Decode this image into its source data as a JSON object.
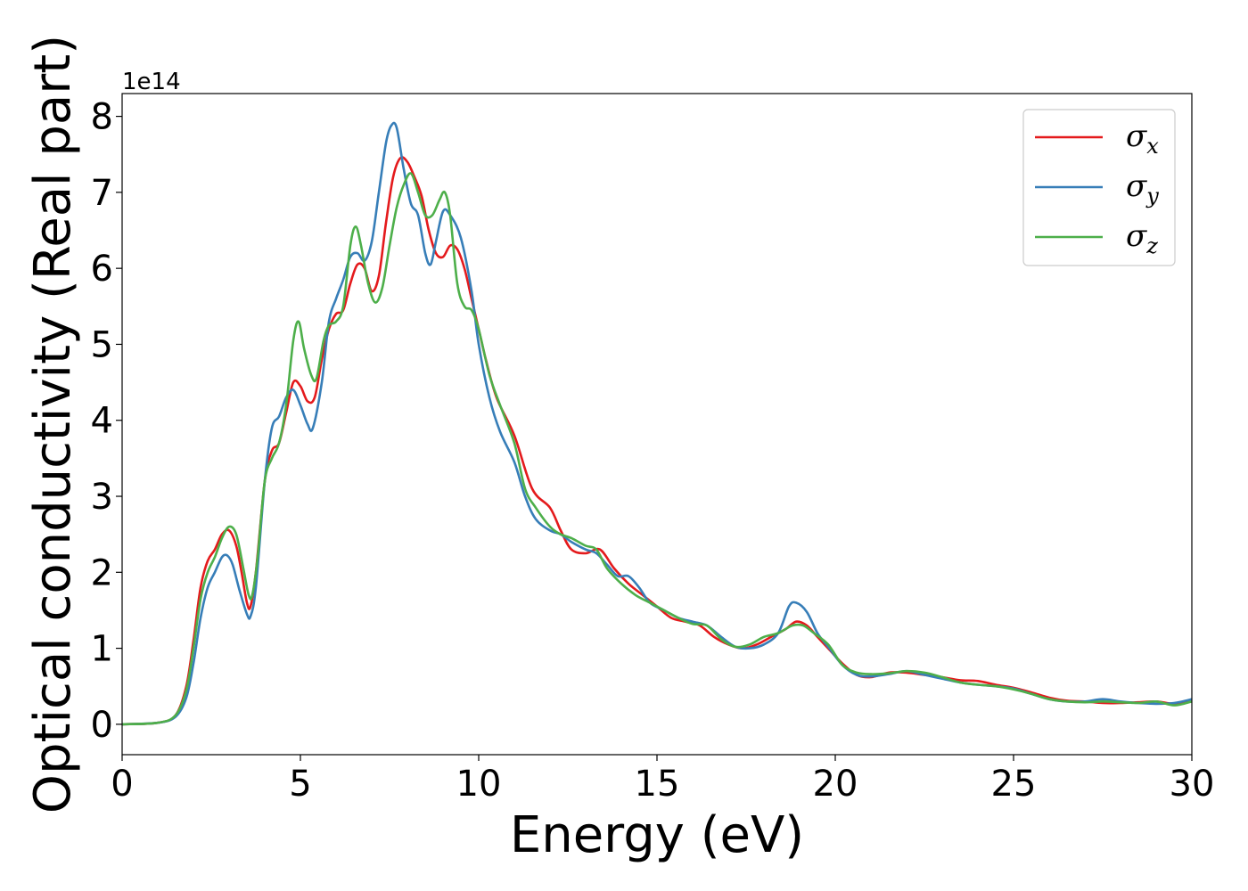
{
  "chart_data": {
    "type": "line",
    "xlabel": "Energy (eV)",
    "ylabel": "Optical conductivity (Real part)",
    "offset_label": "1e14",
    "xlim": [
      0,
      30
    ],
    "ylim": [
      -0.4,
      8.3
    ],
    "x_ticks": [
      0,
      5,
      10,
      15,
      20,
      25,
      30
    ],
    "y_ticks": [
      0,
      1,
      2,
      3,
      4,
      5,
      6,
      7,
      8
    ],
    "grid": false,
    "legend_position": "top-right",
    "series": [
      {
        "symbol": "σ",
        "subscript": "x",
        "color": "#e41a1c",
        "points": [
          [
            0,
            0
          ],
          [
            1,
            0.02
          ],
          [
            1.5,
            0.12
          ],
          [
            1.8,
            0.5
          ],
          [
            2.0,
            1.1
          ],
          [
            2.2,
            1.8
          ],
          [
            2.4,
            2.15
          ],
          [
            2.6,
            2.3
          ],
          [
            2.8,
            2.5
          ],
          [
            3.0,
            2.55
          ],
          [
            3.2,
            2.35
          ],
          [
            3.35,
            2.0
          ],
          [
            3.5,
            1.6
          ],
          [
            3.6,
            1.55
          ],
          [
            3.75,
            2.0
          ],
          [
            4.0,
            3.2
          ],
          [
            4.2,
            3.6
          ],
          [
            4.4,
            3.7
          ],
          [
            4.6,
            4.1
          ],
          [
            4.8,
            4.5
          ],
          [
            5.0,
            4.45
          ],
          [
            5.2,
            4.25
          ],
          [
            5.4,
            4.3
          ],
          [
            5.6,
            4.8
          ],
          [
            5.8,
            5.2
          ],
          [
            6.0,
            5.4
          ],
          [
            6.2,
            5.45
          ],
          [
            6.4,
            5.8
          ],
          [
            6.6,
            6.05
          ],
          [
            6.8,
            6.0
          ],
          [
            7.0,
            5.7
          ],
          [
            7.2,
            5.9
          ],
          [
            7.4,
            6.6
          ],
          [
            7.6,
            7.2
          ],
          [
            7.8,
            7.45
          ],
          [
            8.0,
            7.4
          ],
          [
            8.2,
            7.2
          ],
          [
            8.4,
            6.95
          ],
          [
            8.6,
            6.5
          ],
          [
            8.8,
            6.2
          ],
          [
            9.0,
            6.15
          ],
          [
            9.2,
            6.3
          ],
          [
            9.4,
            6.25
          ],
          [
            9.6,
            6.0
          ],
          [
            9.8,
            5.6
          ],
          [
            10.0,
            5.2
          ],
          [
            10.2,
            4.8
          ],
          [
            10.5,
            4.3
          ],
          [
            11.0,
            3.8
          ],
          [
            11.5,
            3.1
          ],
          [
            12.0,
            2.85
          ],
          [
            12.3,
            2.55
          ],
          [
            12.6,
            2.3
          ],
          [
            13.0,
            2.25
          ],
          [
            13.4,
            2.3
          ],
          [
            13.8,
            2.05
          ],
          [
            14.2,
            1.85
          ],
          [
            14.6,
            1.7
          ],
          [
            15.0,
            1.55
          ],
          [
            15.4,
            1.4
          ],
          [
            15.8,
            1.35
          ],
          [
            16.2,
            1.3
          ],
          [
            16.6,
            1.15
          ],
          [
            17.0,
            1.05
          ],
          [
            17.4,
            1.0
          ],
          [
            17.8,
            1.05
          ],
          [
            18.2,
            1.15
          ],
          [
            18.6,
            1.25
          ],
          [
            18.9,
            1.35
          ],
          [
            19.2,
            1.3
          ],
          [
            19.5,
            1.15
          ],
          [
            19.8,
            1.0
          ],
          [
            20.2,
            0.8
          ],
          [
            20.6,
            0.65
          ],
          [
            21.0,
            0.62
          ],
          [
            21.5,
            0.68
          ],
          [
            22.0,
            0.68
          ],
          [
            22.5,
            0.65
          ],
          [
            23.0,
            0.62
          ],
          [
            23.5,
            0.58
          ],
          [
            24.0,
            0.57
          ],
          [
            24.5,
            0.52
          ],
          [
            25.0,
            0.48
          ],
          [
            25.5,
            0.42
          ],
          [
            26.0,
            0.35
          ],
          [
            26.5,
            0.31
          ],
          [
            27.0,
            0.3
          ],
          [
            27.5,
            0.28
          ],
          [
            28.0,
            0.28
          ],
          [
            28.5,
            0.29
          ],
          [
            29.0,
            0.3
          ],
          [
            29.5,
            0.27
          ],
          [
            30.0,
            0.3
          ]
        ]
      },
      {
        "symbol": "σ",
        "subscript": "y",
        "color": "#377eb8",
        "points": [
          [
            0,
            0
          ],
          [
            1,
            0.02
          ],
          [
            1.5,
            0.1
          ],
          [
            1.8,
            0.35
          ],
          [
            2.0,
            0.8
          ],
          [
            2.2,
            1.4
          ],
          [
            2.4,
            1.8
          ],
          [
            2.6,
            2.0
          ],
          [
            2.8,
            2.2
          ],
          [
            2.95,
            2.22
          ],
          [
            3.1,
            2.1
          ],
          [
            3.3,
            1.75
          ],
          [
            3.5,
            1.45
          ],
          [
            3.6,
            1.42
          ],
          [
            3.75,
            1.8
          ],
          [
            4.0,
            3.2
          ],
          [
            4.2,
            3.9
          ],
          [
            4.4,
            4.05
          ],
          [
            4.6,
            4.3
          ],
          [
            4.8,
            4.4
          ],
          [
            5.0,
            4.2
          ],
          [
            5.2,
            3.95
          ],
          [
            5.35,
            3.9
          ],
          [
            5.6,
            4.5
          ],
          [
            5.8,
            5.3
          ],
          [
            6.0,
            5.6
          ],
          [
            6.2,
            5.85
          ],
          [
            6.4,
            6.15
          ],
          [
            6.6,
            6.2
          ],
          [
            6.8,
            6.1
          ],
          [
            7.0,
            6.35
          ],
          [
            7.2,
            7.0
          ],
          [
            7.4,
            7.65
          ],
          [
            7.55,
            7.88
          ],
          [
            7.7,
            7.85
          ],
          [
            7.9,
            7.3
          ],
          [
            8.1,
            6.85
          ],
          [
            8.3,
            6.7
          ],
          [
            8.5,
            6.2
          ],
          [
            8.65,
            6.05
          ],
          [
            8.8,
            6.35
          ],
          [
            9.0,
            6.75
          ],
          [
            9.2,
            6.7
          ],
          [
            9.5,
            6.4
          ],
          [
            9.8,
            5.7
          ],
          [
            10.0,
            5.0
          ],
          [
            10.3,
            4.3
          ],
          [
            10.6,
            3.85
          ],
          [
            11.0,
            3.45
          ],
          [
            11.3,
            3.0
          ],
          [
            11.6,
            2.7
          ],
          [
            12.0,
            2.55
          ],
          [
            12.3,
            2.5
          ],
          [
            12.6,
            2.4
          ],
          [
            13.0,
            2.3
          ],
          [
            13.3,
            2.25
          ],
          [
            13.6,
            2.1
          ],
          [
            13.9,
            1.95
          ],
          [
            14.2,
            1.95
          ],
          [
            14.5,
            1.8
          ],
          [
            14.8,
            1.6
          ],
          [
            15.2,
            1.5
          ],
          [
            15.6,
            1.4
          ],
          [
            16.0,
            1.35
          ],
          [
            16.4,
            1.3
          ],
          [
            16.8,
            1.15
          ],
          [
            17.2,
            1.02
          ],
          [
            17.6,
            1.0
          ],
          [
            18.0,
            1.05
          ],
          [
            18.4,
            1.2
          ],
          [
            18.7,
            1.55
          ],
          [
            18.9,
            1.6
          ],
          [
            19.2,
            1.48
          ],
          [
            19.5,
            1.2
          ],
          [
            19.8,
            1.02
          ],
          [
            20.2,
            0.78
          ],
          [
            20.6,
            0.65
          ],
          [
            21.0,
            0.63
          ],
          [
            21.5,
            0.66
          ],
          [
            22.0,
            0.7
          ],
          [
            22.5,
            0.65
          ],
          [
            23.0,
            0.6
          ],
          [
            23.5,
            0.55
          ],
          [
            24.0,
            0.52
          ],
          [
            24.5,
            0.5
          ],
          [
            25.0,
            0.47
          ],
          [
            25.5,
            0.4
          ],
          [
            26.0,
            0.33
          ],
          [
            26.5,
            0.3
          ],
          [
            27.0,
            0.3
          ],
          [
            27.5,
            0.33
          ],
          [
            28.0,
            0.3
          ],
          [
            28.5,
            0.28
          ],
          [
            29.0,
            0.27
          ],
          [
            29.5,
            0.28
          ],
          [
            30.0,
            0.33
          ]
        ]
      },
      {
        "symbol": "σ",
        "subscript": "z",
        "color": "#4daf4a",
        "points": [
          [
            0,
            0
          ],
          [
            1,
            0.02
          ],
          [
            1.5,
            0.12
          ],
          [
            1.8,
            0.45
          ],
          [
            2.0,
            1.0
          ],
          [
            2.2,
            1.65
          ],
          [
            2.4,
            2.0
          ],
          [
            2.6,
            2.2
          ],
          [
            2.8,
            2.45
          ],
          [
            3.0,
            2.6
          ],
          [
            3.2,
            2.5
          ],
          [
            3.4,
            2.05
          ],
          [
            3.55,
            1.7
          ],
          [
            3.65,
            1.7
          ],
          [
            3.8,
            2.2
          ],
          [
            4.0,
            3.2
          ],
          [
            4.2,
            3.5
          ],
          [
            4.4,
            3.7
          ],
          [
            4.6,
            4.2
          ],
          [
            4.8,
            5.05
          ],
          [
            4.95,
            5.3
          ],
          [
            5.1,
            4.95
          ],
          [
            5.3,
            4.6
          ],
          [
            5.45,
            4.55
          ],
          [
            5.65,
            5.05
          ],
          [
            5.8,
            5.25
          ],
          [
            6.0,
            5.3
          ],
          [
            6.2,
            5.5
          ],
          [
            6.4,
            6.3
          ],
          [
            6.55,
            6.55
          ],
          [
            6.7,
            6.3
          ],
          [
            6.9,
            5.8
          ],
          [
            7.1,
            5.55
          ],
          [
            7.3,
            5.75
          ],
          [
            7.5,
            6.3
          ],
          [
            7.7,
            6.8
          ],
          [
            7.9,
            7.1
          ],
          [
            8.1,
            7.25
          ],
          [
            8.3,
            7.0
          ],
          [
            8.5,
            6.7
          ],
          [
            8.7,
            6.7
          ],
          [
            8.9,
            6.9
          ],
          [
            9.05,
            7.0
          ],
          [
            9.2,
            6.7
          ],
          [
            9.4,
            5.8
          ],
          [
            9.6,
            5.5
          ],
          [
            9.8,
            5.45
          ],
          [
            10.0,
            5.2
          ],
          [
            10.3,
            4.6
          ],
          [
            10.6,
            4.2
          ],
          [
            11.0,
            3.7
          ],
          [
            11.3,
            3.1
          ],
          [
            11.6,
            2.85
          ],
          [
            12.0,
            2.6
          ],
          [
            12.3,
            2.5
          ],
          [
            12.6,
            2.45
          ],
          [
            13.0,
            2.35
          ],
          [
            13.3,
            2.3
          ],
          [
            13.6,
            2.05
          ],
          [
            14.0,
            1.85
          ],
          [
            14.4,
            1.7
          ],
          [
            14.8,
            1.6
          ],
          [
            15.2,
            1.5
          ],
          [
            15.6,
            1.4
          ],
          [
            16.0,
            1.32
          ],
          [
            16.4,
            1.3
          ],
          [
            16.8,
            1.12
          ],
          [
            17.2,
            1.02
          ],
          [
            17.6,
            1.05
          ],
          [
            18.0,
            1.15
          ],
          [
            18.4,
            1.2
          ],
          [
            18.8,
            1.3
          ],
          [
            19.1,
            1.3
          ],
          [
            19.4,
            1.2
          ],
          [
            19.8,
            1.05
          ],
          [
            20.2,
            0.78
          ],
          [
            20.6,
            0.68
          ],
          [
            21.0,
            0.66
          ],
          [
            21.5,
            0.67
          ],
          [
            22.0,
            0.7
          ],
          [
            22.5,
            0.68
          ],
          [
            23.0,
            0.62
          ],
          [
            23.5,
            0.55
          ],
          [
            24.0,
            0.52
          ],
          [
            24.5,
            0.5
          ],
          [
            25.0,
            0.46
          ],
          [
            25.5,
            0.4
          ],
          [
            26.0,
            0.33
          ],
          [
            26.5,
            0.3
          ],
          [
            27.0,
            0.29
          ],
          [
            27.5,
            0.3
          ],
          [
            28.0,
            0.29
          ],
          [
            28.5,
            0.28
          ],
          [
            29.0,
            0.3
          ],
          [
            29.5,
            0.25
          ],
          [
            30.0,
            0.3
          ]
        ]
      }
    ]
  }
}
